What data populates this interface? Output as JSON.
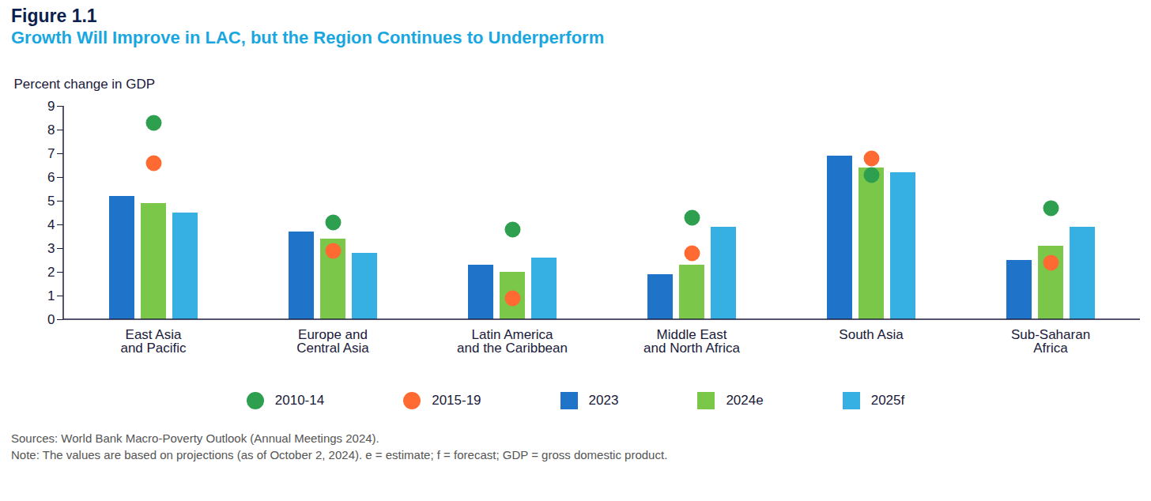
{
  "chart_data": {
    "type": "bar",
    "title": "Figure 1.1",
    "subtitle": "Growth Will Improve in LAC, but the Region Continues to Underperform",
    "y_label": "Percent change in GDP",
    "categories": [
      "East Asia\nand Pacific",
      "Europe and\nCentral Asia",
      "Latin America\nand the Caribbean",
      "Middle East\nand North Africa",
      "South Asia",
      "Sub-Saharan\nAfrica"
    ],
    "series": [
      {
        "name": "2010-14",
        "type": "scatter",
        "marker": "circle",
        "color": "#2e9e4f",
        "values": [
          8.3,
          4.1,
          3.8,
          4.3,
          6.1,
          4.7
        ]
      },
      {
        "name": "2015-19",
        "type": "scatter",
        "marker": "circle",
        "color": "#ff6a33",
        "values": [
          6.6,
          2.9,
          0.9,
          2.8,
          6.8,
          2.4
        ]
      },
      {
        "name": "2023",
        "type": "bar",
        "color": "#1f73c8",
        "values": [
          5.2,
          3.7,
          2.3,
          1.9,
          6.9,
          2.5
        ]
      },
      {
        "name": "2024e",
        "type": "bar",
        "color": "#7ac74a",
        "values": [
          4.9,
          3.4,
          2.0,
          2.3,
          6.4,
          3.1
        ]
      },
      {
        "name": "2025f",
        "type": "bar",
        "color": "#36b0e2",
        "values": [
          4.5,
          2.8,
          2.6,
          3.9,
          6.2,
          3.9
        ]
      }
    ],
    "ylim": [
      0,
      9
    ],
    "yticks": [
      0,
      1,
      2,
      3,
      4,
      5,
      6,
      7,
      8,
      9
    ],
    "grid": false,
    "legend": "bottom",
    "sources": "Sources: World Bank Macro-Poverty Outlook (Annual Meetings 2024).",
    "note": "Note: The values are based on projections (as of October 2, 2024). e = estimate; f = forecast; GDP = gross domestic product."
  }
}
